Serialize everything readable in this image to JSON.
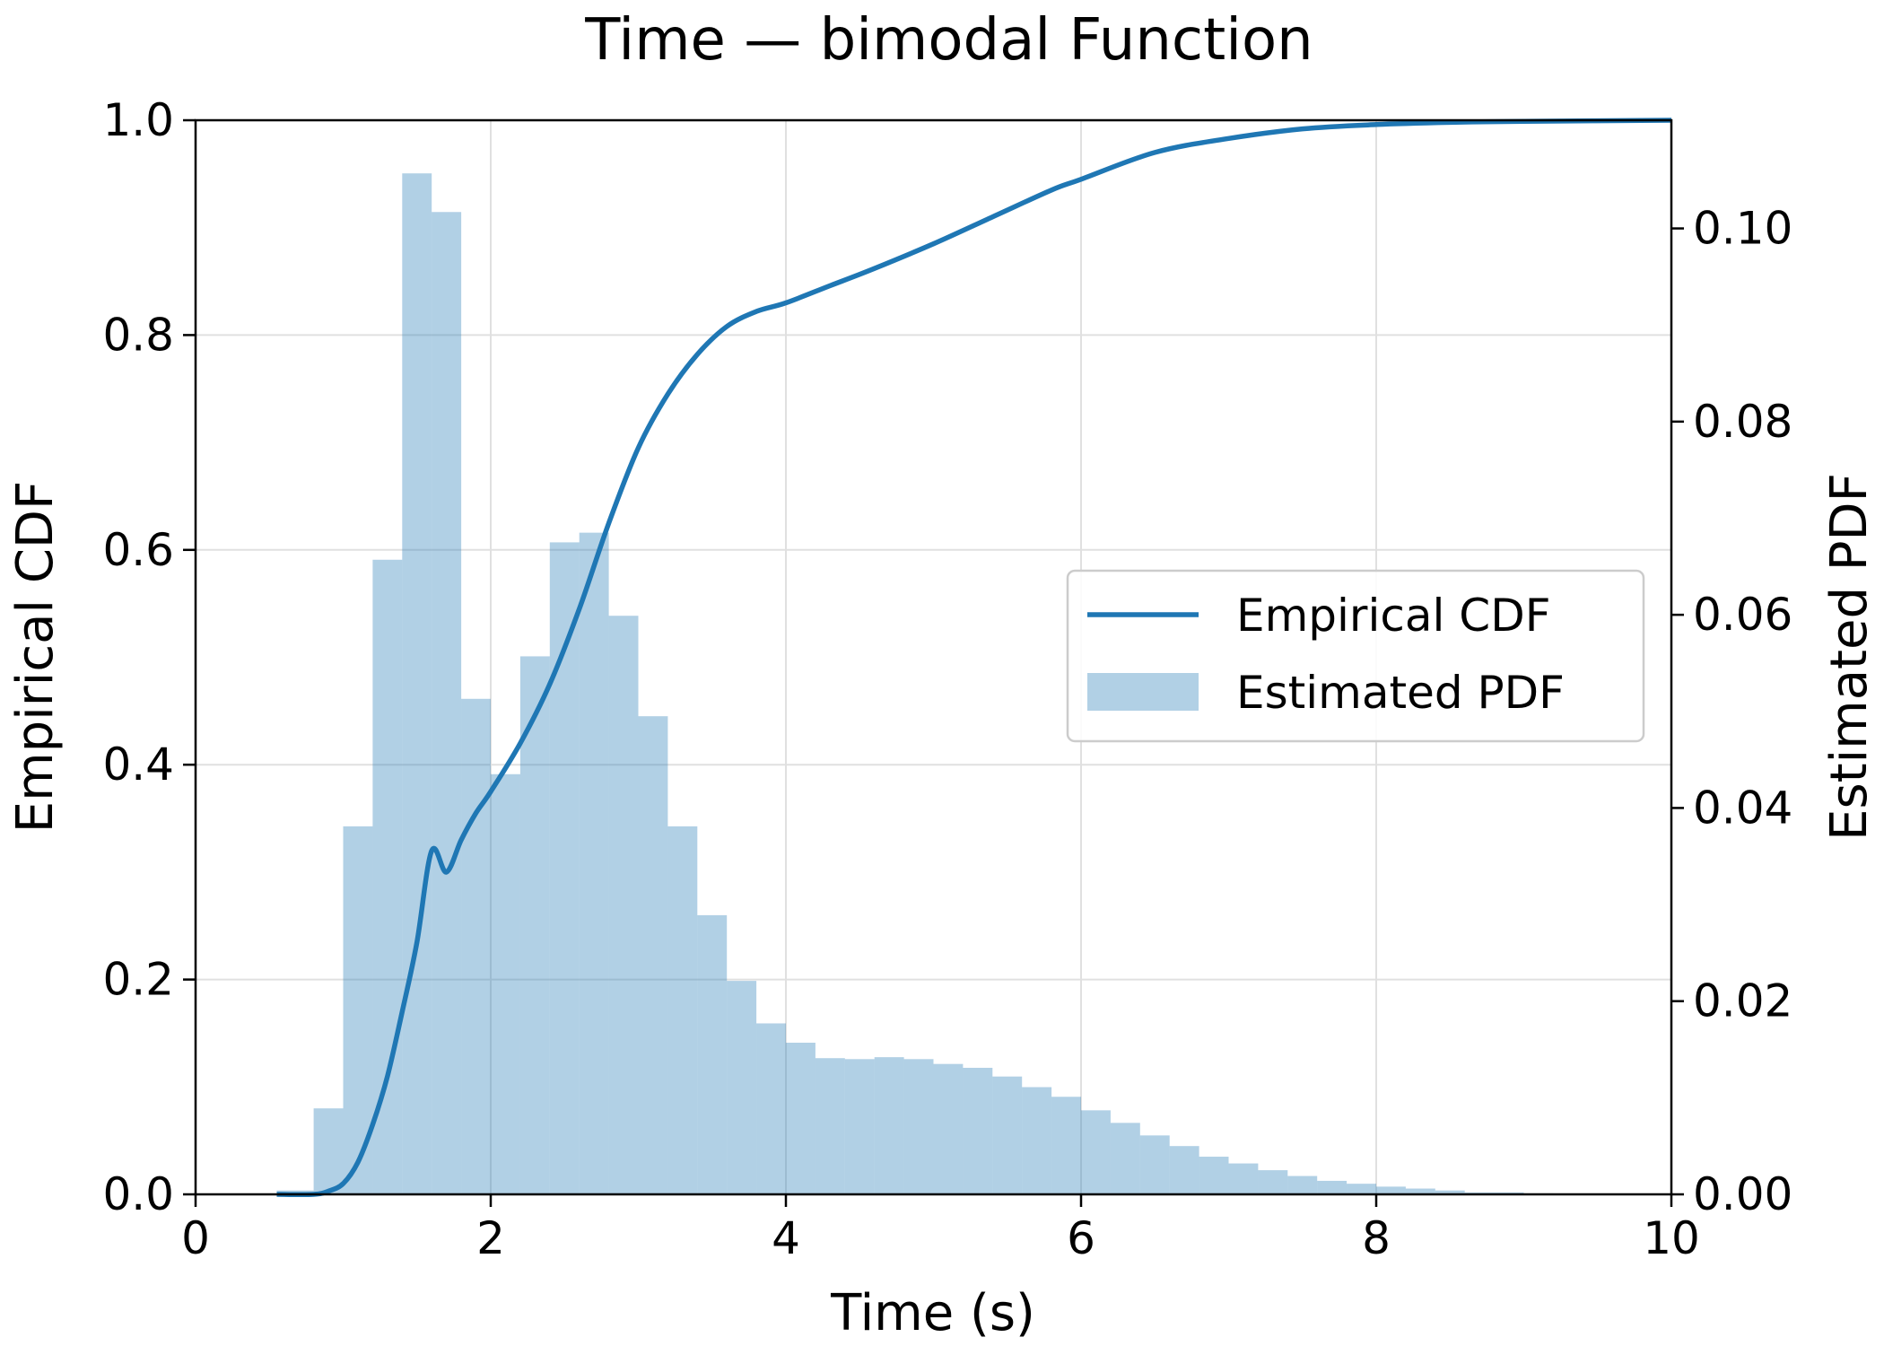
{
  "chart_data": {
    "type": "histogram+line",
    "title": "Time — bimodal Function",
    "xlabel": "Time (s)",
    "ylabel_left": "Empirical CDF",
    "ylabel_right": "Estimated PDF",
    "xlim": [
      0,
      10
    ],
    "ylim_left": [
      0,
      1.0
    ],
    "ylim_right": [
      0,
      0.1112
    ],
    "x_ticks": [
      "0",
      "2",
      "4",
      "6",
      "8",
      "10"
    ],
    "y_left_ticks": [
      "0.0",
      "0.2",
      "0.4",
      "0.6",
      "0.8",
      "1.0"
    ],
    "y_right_ticks": [
      "0.00",
      "0.02",
      "0.04",
      "0.06",
      "0.08",
      "0.10"
    ],
    "grid": true,
    "legend_position": "center-right",
    "colors": {
      "cdf": "#1f77b4",
      "pdf": "#1f77b4",
      "pdf_alpha": 0.35,
      "grid": "#e0e0e0"
    },
    "series": [
      {
        "name": "Empirical CDF",
        "type": "line",
        "axis": "left",
        "x": [
          0.55,
          0.8,
          0.9,
          1.0,
          1.1,
          1.2,
          1.3,
          1.4,
          1.5,
          1.6,
          1.7,
          1.8,
          1.9,
          2.0,
          2.2,
          2.4,
          2.6,
          2.8,
          3.0,
          3.2,
          3.4,
          3.6,
          3.8,
          4.0,
          4.3,
          4.6,
          5.0,
          5.4,
          5.8,
          6.0,
          6.5,
          7.0,
          7.5,
          8.0,
          8.5,
          9.0,
          10.0
        ],
        "y": [
          0.0,
          0.0,
          0.003,
          0.01,
          0.03,
          0.065,
          0.11,
          0.17,
          0.235,
          0.32,
          0.3,
          0.33,
          0.355,
          0.375,
          0.42,
          0.475,
          0.545,
          0.625,
          0.695,
          0.745,
          0.782,
          0.808,
          0.822,
          0.83,
          0.846,
          0.862,
          0.885,
          0.91,
          0.935,
          0.945,
          0.97,
          0.983,
          0.992,
          0.996,
          0.998,
          0.999,
          1.0
        ]
      },
      {
        "name": "Estimated PDF",
        "type": "bar",
        "axis": "right",
        "bin_edges": [
          0.55,
          0.8,
          1.0,
          1.2,
          1.4,
          1.6,
          1.8,
          2.0,
          2.2,
          2.4,
          2.6,
          2.8,
          3.0,
          3.2,
          3.4,
          3.6,
          3.8,
          4.0,
          4.2,
          4.4,
          4.6,
          4.8,
          5.0,
          5.2,
          5.4,
          5.6,
          5.8,
          6.0,
          6.2,
          6.4,
          6.6,
          6.8,
          7.0,
          7.2,
          7.4,
          7.6,
          7.8,
          8.0,
          8.2,
          8.4,
          8.6,
          8.8,
          9.0,
          9.2
        ],
        "values": [
          0.0004,
          0.0089,
          0.0381,
          0.0657,
          0.1057,
          0.1017,
          0.0513,
          0.0435,
          0.0557,
          0.0675,
          0.0685,
          0.0599,
          0.0495,
          0.0381,
          0.0289,
          0.0221,
          0.0177,
          0.0157,
          0.0141,
          0.014,
          0.0142,
          0.014,
          0.0135,
          0.0131,
          0.0122,
          0.0111,
          0.0101,
          0.0087,
          0.0074,
          0.0061,
          0.005,
          0.0039,
          0.0032,
          0.0025,
          0.0019,
          0.0014,
          0.0011,
          0.0008,
          0.0006,
          0.0004,
          0.0002,
          0.0002,
          0.0001
        ]
      }
    ]
  }
}
